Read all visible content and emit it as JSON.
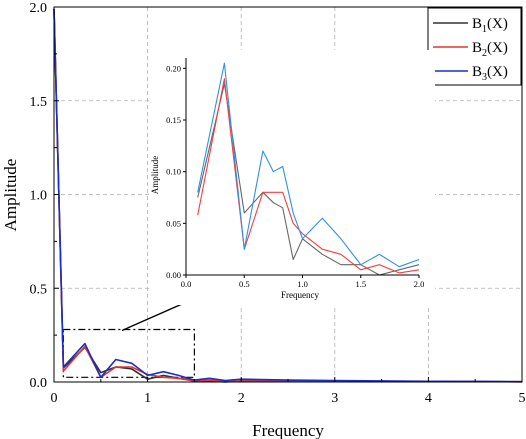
{
  "chart_data": [
    {
      "type": "line",
      "title": "",
      "xlabel": "Frequency",
      "ylabel": "Amplitude",
      "xlim": [
        0,
        5
      ],
      "ylim": [
        0,
        2.0
      ],
      "x_ticks": [
        "0",
        "1",
        "2",
        "3",
        "4",
        "5"
      ],
      "y_ticks": [
        "0.0",
        "0.5",
        "1.0",
        "1.5",
        "2.0"
      ],
      "grid": true,
      "legend_position": "top-right",
      "series": [
        {
          "name": "B1(X)",
          "name_main": "B",
          "name_sub": "1",
          "name_suffix": "(X)",
          "color": "#333333",
          "x": [
            0,
            0.1,
            0.33,
            0.5,
            0.66,
            0.83,
            1.0,
            1.17,
            1.33,
            1.5,
            1.66,
            1.83,
            2.0,
            2.5,
            3.0,
            3.5,
            4.0,
            4.5,
            5.0
          ],
          "y": [
            1.99,
            0.075,
            0.185,
            0.05,
            0.08,
            0.07,
            0.015,
            0.035,
            0.02,
            0.01,
            0.005,
            0.0,
            0.006,
            0.005,
            0.003,
            0.003,
            0.002,
            0.002,
            0.001
          ]
        },
        {
          "name": "B2(X)",
          "name_main": "B",
          "name_sub": "2",
          "name_suffix": "(X)",
          "color": "#e8332e",
          "x": [
            0,
            0.1,
            0.33,
            0.5,
            0.66,
            0.83,
            1.0,
            1.17,
            1.33,
            1.5,
            1.66,
            1.83,
            2.0,
            2.5,
            3.0,
            3.5,
            4.0,
            4.5,
            5.0
          ],
          "y": [
            1.99,
            0.058,
            0.19,
            0.025,
            0.08,
            0.08,
            0.04,
            0.025,
            0.02,
            0.005,
            0.01,
            0.002,
            0.005,
            0.004,
            0.004,
            0.003,
            0.002,
            0.002,
            0.001
          ]
        },
        {
          "name": "B3(X)",
          "name_main": "B",
          "name_sub": "3",
          "name_suffix": "(X)",
          "color": "#1a2ecc",
          "x": [
            0,
            0.1,
            0.33,
            0.5,
            0.66,
            0.83,
            1.0,
            1.17,
            1.33,
            1.5,
            1.66,
            1.83,
            2.0,
            2.5,
            3.0,
            3.5,
            4.0,
            4.5,
            5.0
          ],
          "y": [
            1.99,
            0.08,
            0.205,
            0.025,
            0.12,
            0.1,
            0.035,
            0.055,
            0.035,
            0.01,
            0.02,
            0.008,
            0.015,
            0.01,
            0.008,
            0.006,
            0.004,
            0.003,
            0.002
          ]
        }
      ]
    },
    {
      "type": "line",
      "title": "",
      "xlabel": "Frequency",
      "ylabel": "Amplitude",
      "xlim": [
        0,
        2.0
      ],
      "ylim": [
        0,
        0.21
      ],
      "x_ticks": [
        "0.0",
        "0.5",
        "1.0",
        "1.5",
        "2.0"
      ],
      "y_ticks": [
        "0.00",
        "0.05",
        "0.10",
        "0.15",
        "0.20"
      ],
      "grid": false,
      "series": [
        {
          "name": "B1(X)",
          "color": "#666666",
          "x": [
            0.1,
            0.33,
            0.5,
            0.66,
            0.75,
            0.83,
            0.92,
            1.0,
            1.17,
            1.33,
            1.5,
            1.66,
            1.83,
            2.0
          ],
          "y": [
            0.075,
            0.185,
            0.06,
            0.08,
            0.07,
            0.065,
            0.015,
            0.035,
            0.02,
            0.01,
            0.01,
            0.0,
            0.005,
            0.01
          ]
        },
        {
          "name": "B2(X)",
          "color": "#f04040",
          "x": [
            0.1,
            0.33,
            0.5,
            0.66,
            0.75,
            0.83,
            0.92,
            1.0,
            1.17,
            1.33,
            1.5,
            1.66,
            1.83,
            2.0
          ],
          "y": [
            0.058,
            0.19,
            0.025,
            0.08,
            0.08,
            0.08,
            0.05,
            0.04,
            0.025,
            0.02,
            0.005,
            0.01,
            0.002,
            0.005
          ]
        },
        {
          "name": "B3(X)",
          "color": "#2f8fe8",
          "x": [
            0.1,
            0.33,
            0.5,
            0.66,
            0.75,
            0.83,
            0.92,
            1.0,
            1.17,
            1.33,
            1.5,
            1.66,
            1.83,
            2.0
          ],
          "y": [
            0.08,
            0.205,
            0.025,
            0.12,
            0.1,
            0.105,
            0.06,
            0.035,
            0.055,
            0.035,
            0.01,
            0.02,
            0.008,
            0.015
          ]
        }
      ]
    }
  ]
}
